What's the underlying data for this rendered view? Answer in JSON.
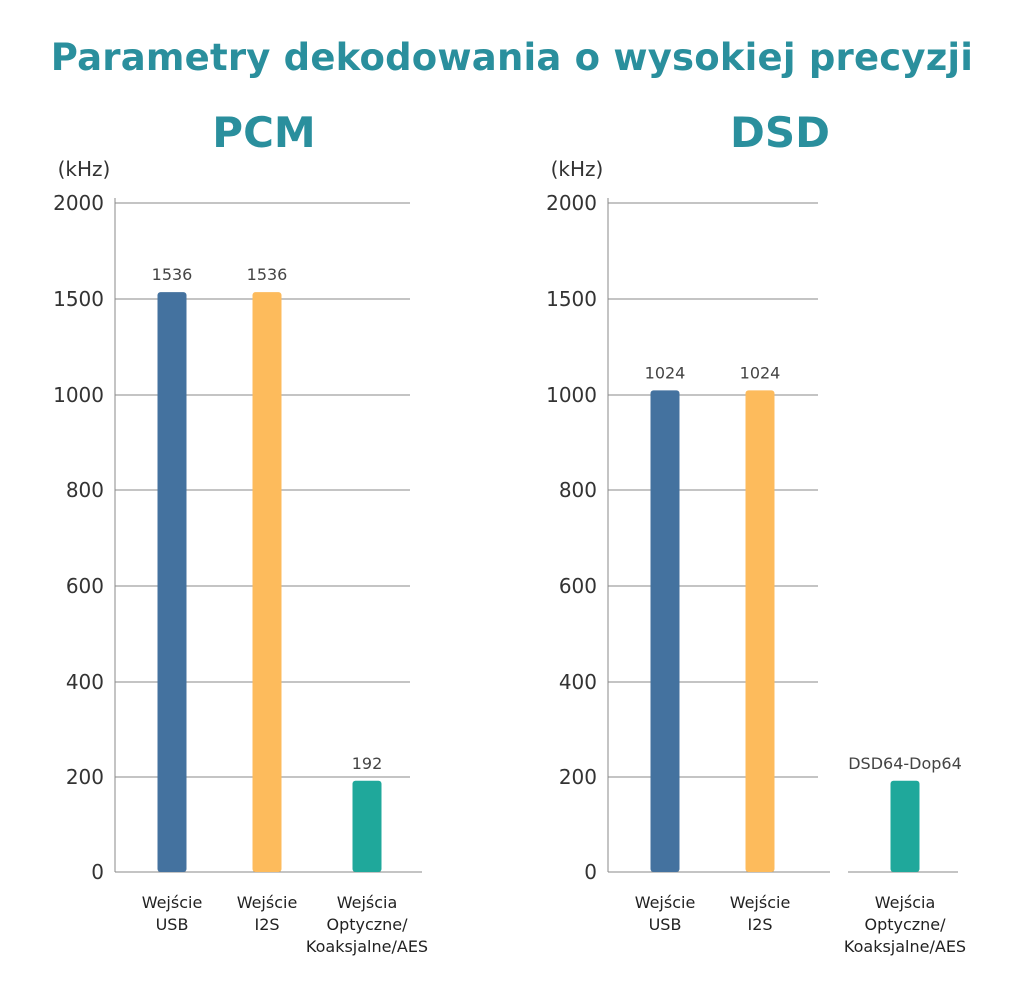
{
  "title": "Parametry dekodowania o wysokiej precyzji",
  "colors": {
    "title": "#2a8f9d",
    "usb": "#44729f",
    "i2s": "#fdbb5c",
    "optical": "#1fa89b",
    "grid": "#888888"
  },
  "chart_data": [
    {
      "type": "bar",
      "title": "PCM",
      "unit": "(kHz)",
      "yticks": [
        "0",
        "200",
        "400",
        "600",
        "800",
        "1000",
        "1500",
        "2000"
      ],
      "categories": [
        [
          "Wejście",
          "USB"
        ],
        [
          "Wejście",
          "I2S"
        ],
        [
          "Wejścia",
          "Optyczne/",
          "Koaksjalne/AES"
        ]
      ],
      "values": [
        1536,
        1536,
        192
      ],
      "value_labels": [
        "1536",
        "1536",
        "192"
      ],
      "grid": true,
      "legend": "none"
    },
    {
      "type": "bar",
      "title": "DSD",
      "unit": "(kHz)",
      "yticks": [
        "0",
        "200",
        "400",
        "600",
        "800",
        "1000",
        "1500",
        "2000"
      ],
      "categories": [
        [
          "Wejście",
          "USB"
        ],
        [
          "Wejście",
          "I2S"
        ],
        [
          "Wejścia",
          "Optyczne/",
          "Koaksjalne/AES"
        ]
      ],
      "values": [
        1024,
        1024,
        192
      ],
      "value_labels": [
        "1024",
        "1024",
        "DSD64-Dop64"
      ],
      "grid": true,
      "legend": "none"
    }
  ]
}
